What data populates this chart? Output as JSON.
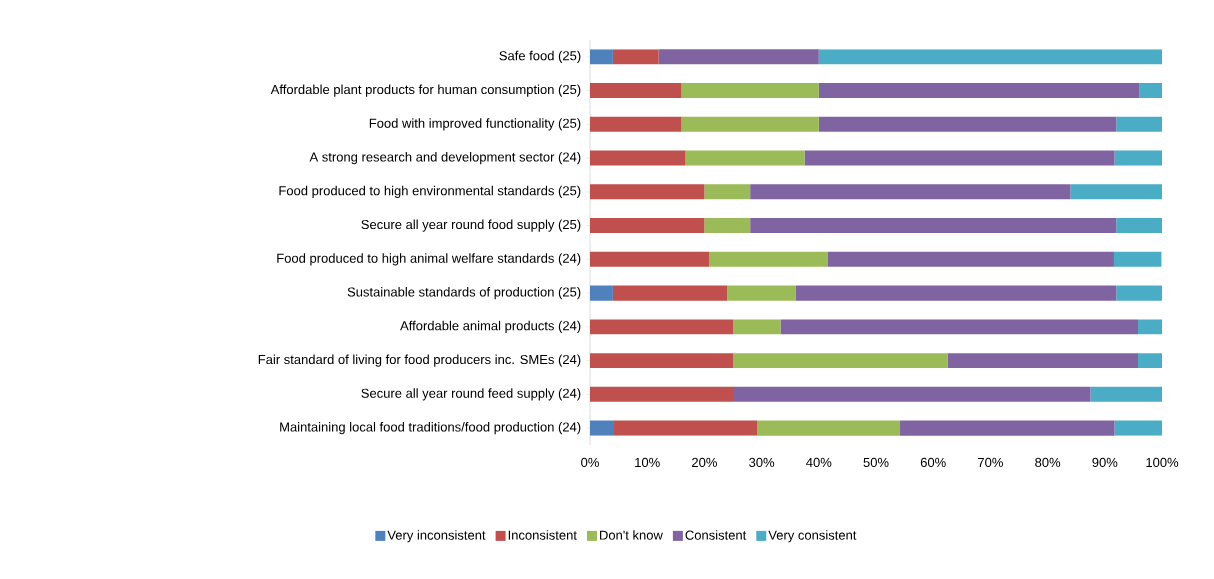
{
  "chart_data": {
    "type": "bar",
    "orientation": "horizontal",
    "stacked": true,
    "legend": "bottom",
    "categories": [
      "Safe food (25)",
      "Affordable plant products for human consumption (25)",
      "Food with improved functionality (25)",
      "A strong research and development sector (24)",
      "Food produced to high environmental standards (25)",
      "Secure all year round food supply (25)",
      "Food produced to high animal welfare standards (24)",
      "Sustainable standards of production (25)",
      "Affordable animal products (24)",
      "Fair standard of living for food producers inc. SMEs (24)",
      "Secure all year round feed supply (24)",
      "Maintaining local food traditions/food production (24)"
    ],
    "series": [
      {
        "name": "Very inconsistent",
        "color": "#4f81bd",
        "values": [
          4,
          0,
          0,
          0,
          0,
          0,
          0,
          4,
          0,
          0,
          0,
          4.2
        ]
      },
      {
        "name": "Inconsistent",
        "color": "#c0504d",
        "values": [
          8,
          16,
          16,
          16.7,
          20,
          20,
          20.8,
          20,
          25,
          25,
          25,
          25
        ]
      },
      {
        "name": "Don't know",
        "color": "#9bbb59",
        "values": [
          0,
          24,
          24,
          20.8,
          8,
          8,
          20.8,
          12,
          8.3,
          37.5,
          0,
          25
        ]
      },
      {
        "name": "Consistent",
        "color": "#8064a2",
        "values": [
          28,
          56,
          52,
          54.2,
          56,
          64,
          50,
          56,
          62.5,
          33.3,
          62.5,
          37.5
        ]
      },
      {
        "name": "Very consistent",
        "color": "#4bacc6",
        "values": [
          60,
          4,
          8,
          8.3,
          16,
          8,
          8.3,
          8,
          4.2,
          4.2,
          12.5,
          8.3
        ]
      }
    ],
    "xlim": [
      0,
      100
    ],
    "xticks": [
      {
        "value": 0,
        "label": "0%"
      },
      {
        "value": 10,
        "label": "10%"
      },
      {
        "value": 20,
        "label": "20%"
      },
      {
        "value": 30,
        "label": "30%"
      },
      {
        "value": 40,
        "label": "40%"
      },
      {
        "value": 50,
        "label": "50%"
      },
      {
        "value": 60,
        "label": "60%"
      },
      {
        "value": 70,
        "label": "70%"
      },
      {
        "value": 80,
        "label": "80%"
      },
      {
        "value": 90,
        "label": "90%"
      },
      {
        "value": 100,
        "label": "100%"
      }
    ]
  }
}
